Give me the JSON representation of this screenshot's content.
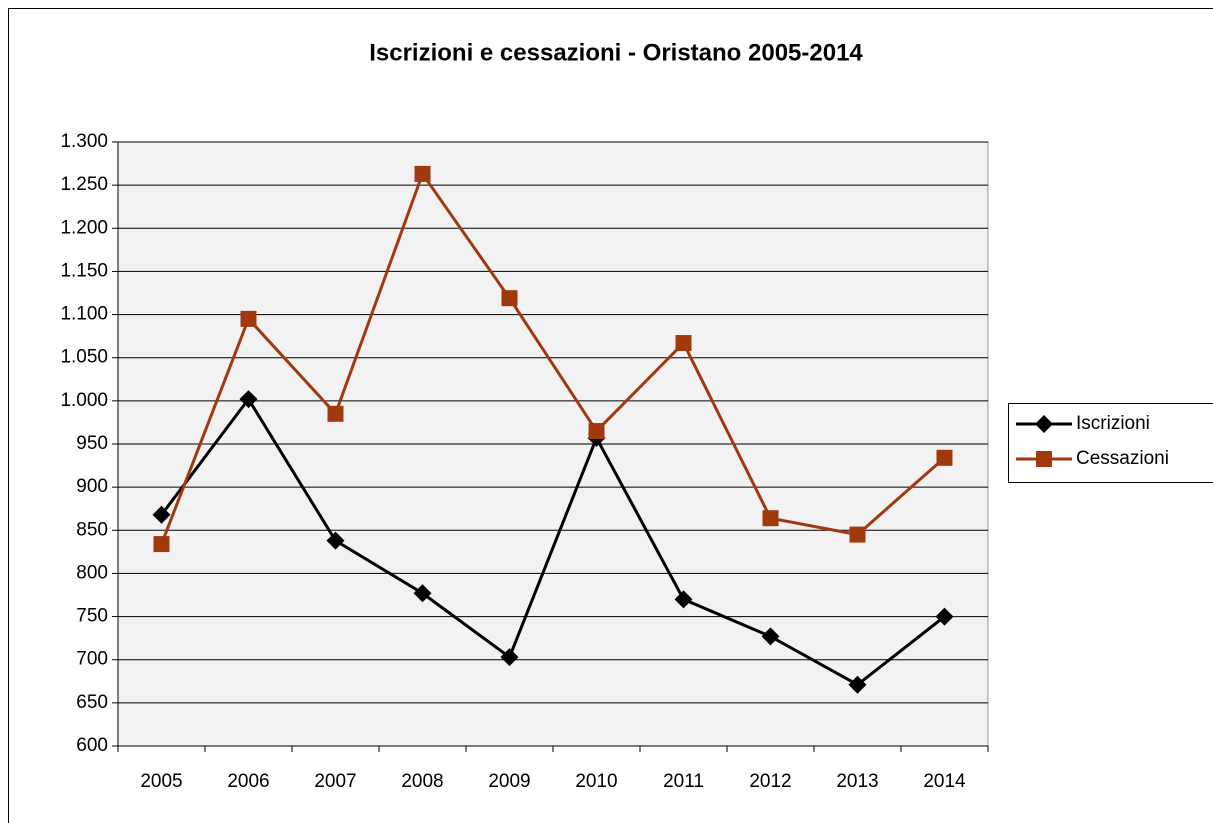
{
  "chart_data": {
    "type": "line",
    "title": "Iscrizioni e cessazioni - Oristano 2005-2014",
    "categories": [
      "2005",
      "2006",
      "2007",
      "2008",
      "2009",
      "2010",
      "2011",
      "2012",
      "2013",
      "2014"
    ],
    "series": [
      {
        "name": "Iscrizioni",
        "color": "#000000",
        "marker": "diamond",
        "values": [
          868,
          1002,
          838,
          777,
          703,
          957,
          770,
          727,
          671,
          750
        ]
      },
      {
        "name": "Cessazioni",
        "color": "#a0390e",
        "marker": "square",
        "values": [
          834,
          1095,
          985,
          1263,
          1119,
          965,
          1067,
          864,
          845,
          934
        ]
      }
    ],
    "ylim": [
      600,
      1300
    ],
    "yticks": [
      600,
      650,
      700,
      750,
      800,
      850,
      900,
      950,
      {
        "value": 1000,
        "label": "1.000"
      },
      {
        "value": 1050,
        "label": "1.050"
      },
      {
        "value": 1100,
        "label": "1.100"
      },
      {
        "value": 1150,
        "label": "1.150"
      },
      {
        "value": 1200,
        "label": "1.200"
      },
      {
        "value": 1250,
        "label": "1.250"
      },
      {
        "value": 1300,
        "label": "1.300"
      }
    ],
    "grid": true,
    "legend": "right"
  }
}
